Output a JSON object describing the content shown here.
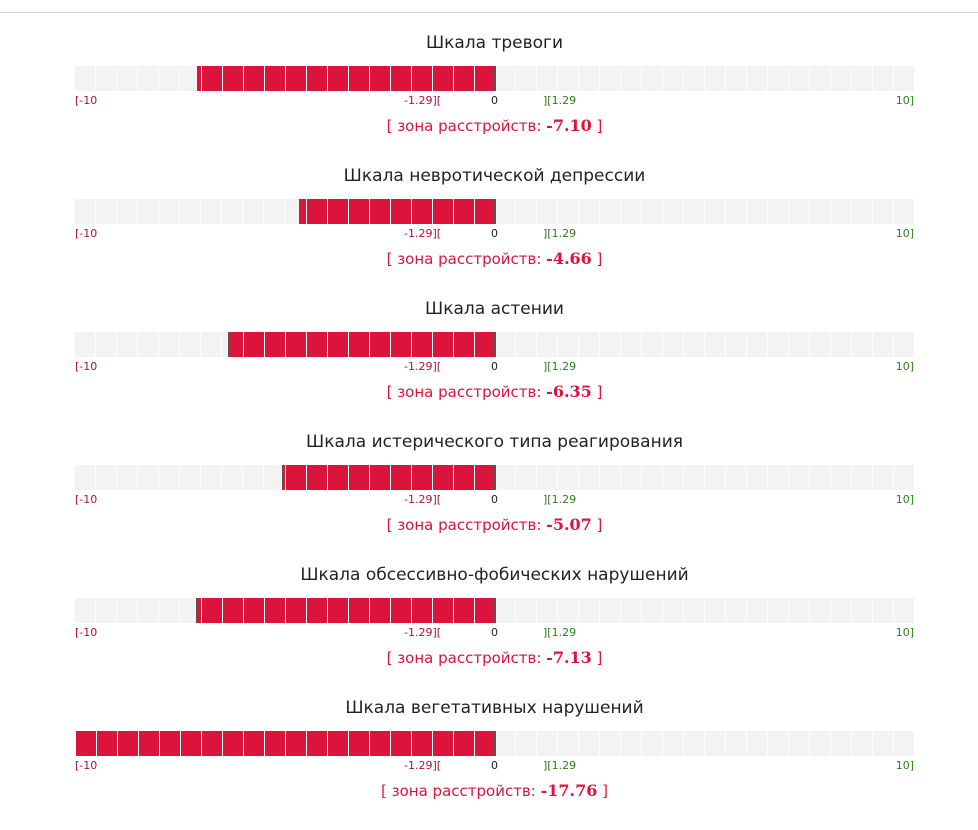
{
  "axis": {
    "min_label": "[-10",
    "neg_threshold_label": "-1.29][",
    "zero_label": "0",
    "pos_threshold_label": "][1.29",
    "max_label": "10]"
  },
  "zone_prefix": "[ зона расстройств: ",
  "zone_suffix": " ]",
  "scales": [
    {
      "title": "Шкала тревоги",
      "value_text": "-7.10",
      "value": -7.1
    },
    {
      "title": "Шкала невротической депрессии",
      "value_text": "-4.66",
      "value": -4.66
    },
    {
      "title": "Шкала астении",
      "value_text": "-6.35",
      "value": -6.35
    },
    {
      "title": "Шкала истерического типа реагирования",
      "value_text": "-5.07",
      "value": -5.07
    },
    {
      "title": "Шкала обсессивно-фобических нарушений",
      "value_text": "-7.13",
      "value": -7.13
    },
    {
      "title": "Шкала вегетативных нарушений",
      "value_text": "-17.76",
      "value": -17.76
    }
  ],
  "colors": {
    "negative_bar": "#dc143c",
    "track": "#f3f3f3"
  }
}
